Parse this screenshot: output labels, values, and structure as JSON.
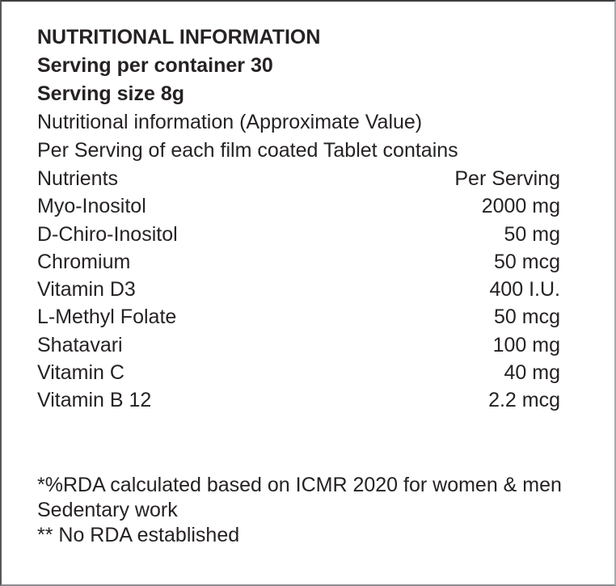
{
  "label": {
    "title": "NUTRITIONAL INFORMATION",
    "serving_per_container": "Serving per container 30",
    "serving_size": "Serving size 8g",
    "approx_value_note": "Nutritional information (Approximate Value)",
    "per_serving_note": "Per Serving of each film coated Tablet contains"
  },
  "table": {
    "columns": [
      "Nutrients",
      "Per Serving"
    ],
    "rows": [
      {
        "nutrient": "Myo-Inositol",
        "amount": "2000 mg"
      },
      {
        "nutrient": "D-Chiro-Inositol",
        "amount": "50 mg"
      },
      {
        "nutrient": "Chromium",
        "amount": "50 mcg"
      },
      {
        "nutrient": "Vitamin D3",
        "amount": "400 I.U."
      },
      {
        "nutrient": "L-Methyl Folate",
        "amount": "50 mcg"
      },
      {
        "nutrient": "Shatavari",
        "amount": "100 mg"
      },
      {
        "nutrient": "Vitamin C",
        "amount": "40 mg"
      },
      {
        "nutrient": "Vitamin B 12",
        "amount": "2.2 mcg"
      }
    ]
  },
  "footnotes": {
    "line1": "*%RDA calculated based on ICMR 2020 for women & men",
    "line2": "Sedentary work",
    "line3": "** No RDA established"
  },
  "colors": {
    "text": "#262223",
    "border_dark": "#3f3f41",
    "border_light": "#a6a9ad",
    "background": "#ffffff"
  }
}
